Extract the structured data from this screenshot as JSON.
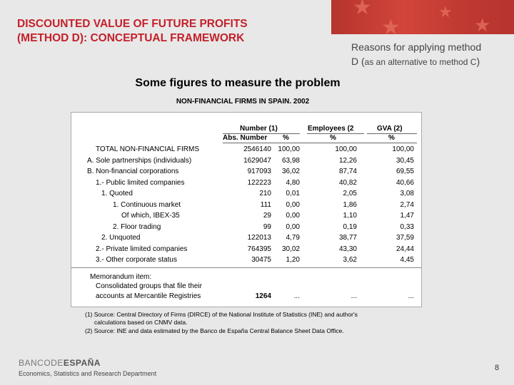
{
  "slide": {
    "title_line1": "DISCOUNTED VALUE OF FUTURE PROFITS",
    "title_line2": "(METHOD D): CONCEPTUAL FRAMEWORK",
    "reasons_line1": "Reasons for applying method",
    "reasons_d": "D (",
    "reasons_small": "as an alternative to method C",
    "reasons_close": ")",
    "subtitle": "Some figures to measure the problem",
    "page_number": "8"
  },
  "table": {
    "title": "NON-FINANCIAL FIRMS IN SPAIN. 2002",
    "headers": {
      "number": "Number (1)",
      "abs_number": "Abs. Number",
      "pct1": "%",
      "employees": "Employees (2",
      "pct2": "%",
      "gva": "GVA (2)",
      "pct3": "%"
    },
    "rows": [
      {
        "label": "TOTAL NON-FINANCIAL FIRMS",
        "abs": "2546140",
        "pct": "100,00",
        "emp": "100,00",
        "gva": "100,00"
      },
      {
        "label": "A. Sole partnerships (individuals)",
        "abs": "1629047",
        "pct": "63,98",
        "emp": "12,26",
        "gva": "30,45"
      },
      {
        "label": "B. Non-financial corporations",
        "abs": "917093",
        "pct": "36,02",
        "emp": "87,74",
        "gva": "69,55"
      },
      {
        "label": "1.- Public limited companies",
        "abs": "122223",
        "pct": "4,80",
        "emp": "40,82",
        "gva": "40,66"
      },
      {
        "label": "1. Quoted",
        "abs": "210",
        "pct": "0,01",
        "emp": "2,05",
        "gva": "3,08"
      },
      {
        "label": "1. Continuous market",
        "abs": "111",
        "pct": "0,00",
        "emp": "1,86",
        "gva": "2,74"
      },
      {
        "label": "Of which, IBEX-35",
        "abs": "29",
        "pct": "0,00",
        "emp": "1,10",
        "gva": "1,47"
      },
      {
        "label": "2. Floor trading",
        "abs": "99",
        "pct": "0,00",
        "emp": "0,19",
        "gva": "0,33"
      },
      {
        "label": "2. Unquoted",
        "abs": "122013",
        "pct": "4,79",
        "emp": "38,77",
        "gva": "37,59"
      },
      {
        "label": "2.- Private limited companies",
        "abs": "764395",
        "pct": "30,02",
        "emp": "43,30",
        "gva": "24,44"
      },
      {
        "label": "3.- Other corporate status",
        "abs": "30475",
        "pct": "1,20",
        "emp": "3,62",
        "gva": "4,45"
      }
    ],
    "memo": {
      "line1": "Memorandum item:",
      "line2": "Consolidated groups that file their",
      "line3": "accounts at Mercantile Registries",
      "abs": "1264",
      "pct": "...",
      "emp": "...",
      "gva": "..."
    },
    "footnotes": {
      "f1a": "(1) Source: Central Directory of Firms (DIRCE) of the National Institute of Statistics (INE) and author's",
      "f1b": "calculations based on CNMV data.",
      "f2": "(2) Source: INE and data estimated by the Banco de España Central Balance Sheet Data Office."
    }
  },
  "footer": {
    "logo_light": "BANCODE",
    "logo_bold": "ESPAÑA",
    "department": "Economics, Statistics and Research Department"
  }
}
